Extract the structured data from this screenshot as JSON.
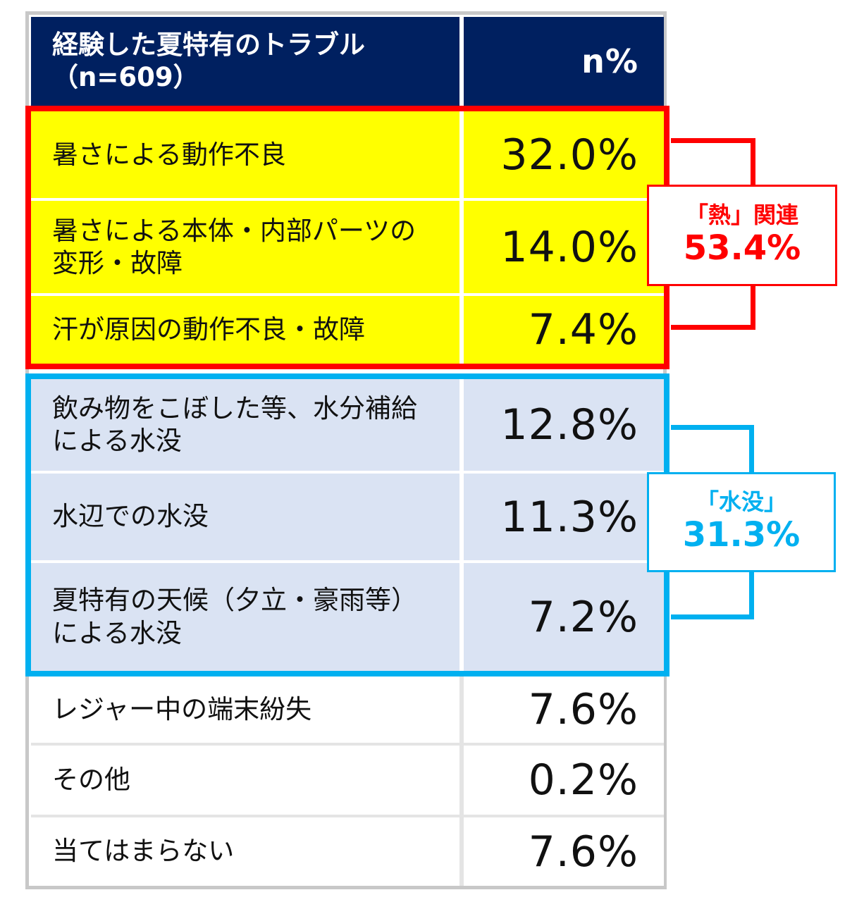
{
  "chart_data": {
    "type": "table",
    "header": {
      "label_line1": "経験した夏特有のトラブル",
      "label_line2": "（n=609）",
      "value": "n%"
    },
    "rows": [
      {
        "label": "暑さによる動作不良",
        "value_text": "32.0%",
        "value": 32.0,
        "group": "heat"
      },
      {
        "label": "暑さによる本体・内部パーツの変形・故障",
        "value_text": "14.0%",
        "value": 14.0,
        "group": "heat"
      },
      {
        "label": "汗が原因の動作不良・故障",
        "value_text": "7.4%",
        "value": 7.4,
        "group": "heat"
      },
      {
        "label": "飲み物をこぼした等、水分補給による水没",
        "value_text": "12.8%",
        "value": 12.8,
        "group": "water"
      },
      {
        "label": "水辺での水没",
        "value_text": "11.3%",
        "value": 11.3,
        "group": "water"
      },
      {
        "label": "夏特有の天候（夕立・豪雨等）による水没",
        "value_text": "7.2%",
        "value": 7.2,
        "group": "water"
      },
      {
        "label": "レジャー中の端末紛失",
        "value_text": "7.6%",
        "value": 7.6,
        "group": "none"
      },
      {
        "label": "その他",
        "value_text": "0.2%",
        "value": 0.2,
        "group": "none"
      },
      {
        "label": "当てはまらない",
        "value_text": "7.6%",
        "value": 7.6,
        "group": "none"
      }
    ],
    "groups": {
      "heat": {
        "label": "「熱」関連",
        "total_text": "53.4%",
        "total": 53.4,
        "color": "#ff0000"
      },
      "water": {
        "label": "「水没」",
        "total_text": "31.3%",
        "total": 31.3,
        "color": "#00b0f0"
      }
    }
  },
  "colors": {
    "header_bg": "#002060",
    "heat_fill": "#ffff00",
    "water_fill": "#dae3f3",
    "heat_accent": "#ff0000",
    "water_accent": "#00b0f0"
  }
}
